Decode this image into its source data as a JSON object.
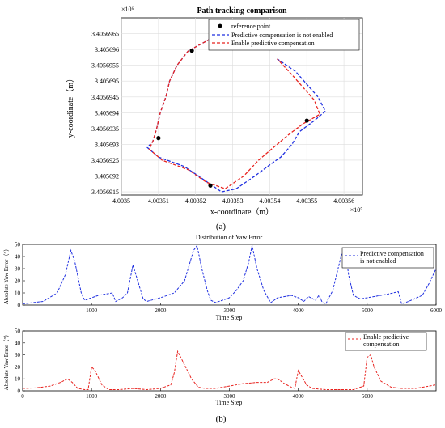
{
  "panel_labels": {
    "a": "(a)",
    "b": "(b)"
  },
  "chart_data": [
    {
      "type": "line",
      "title": "Path tracking comparison",
      "xlabel": "x-coordinate（m）",
      "ylabel": "y-coordinate（m）",
      "x_exponent_label": "×10⁵",
      "y_exponent_label": "×10⁶",
      "xlim": [
        400350.0,
        400356.5
      ],
      "ylim": [
        3405691.4,
        3405697.0
      ],
      "x_ticks": [
        400350,
        400351,
        400352,
        400353,
        400354,
        400355,
        400356
      ],
      "x_tick_labels": [
        "4.0035",
        "4.00351",
        "4.00352",
        "4.00353",
        "4.00354",
        "4.00355",
        "4.00356"
      ],
      "y_ticks": [
        3405691.5,
        3405692.0,
        3405692.5,
        3405693.0,
        3405693.5,
        3405694.0,
        3405694.5,
        3405695.0,
        3405695.5,
        3405696.0,
        3405696.5
      ],
      "y_tick_labels": [
        "3.4056915",
        "3.405692",
        "3.4056925",
        "3.405693",
        "3.4056935",
        "3.405694",
        "3.4056945",
        "3.405695",
        "3.4056955",
        "3.405696",
        "3.4056965"
      ],
      "grid": true,
      "legend_position": "top-right",
      "colors": {
        "not_enabled": "#1f2fe0",
        "enabled": "#e8231f",
        "reference": "#000000"
      },
      "series": [
        {
          "name": "Predictive compensation is not enabled",
          "style": "dashed",
          "points": [
            [
              400352.5,
              3405696.4
            ],
            [
              400351.8,
              3405695.95
            ],
            [
              400351.5,
              3405695.5
            ],
            [
              400351.3,
              3405695.0
            ],
            [
              400351.2,
              3405694.5
            ],
            [
              400351.05,
              3405694.0
            ],
            [
              400350.95,
              3405693.5
            ],
            [
              400350.85,
              3405693.1
            ],
            [
              400350.7,
              3405692.9
            ],
            [
              400351.0,
              3405692.6
            ],
            [
              400351.7,
              3405692.3
            ],
            [
              400352.2,
              3405691.9
            ],
            [
              400352.7,
              3405691.5
            ],
            [
              400353.1,
              3405691.6
            ],
            [
              400353.6,
              3405692.0
            ],
            [
              400354.0,
              3405692.35
            ],
            [
              400354.3,
              3405692.6
            ],
            [
              400354.6,
              3405693.0
            ],
            [
              400354.8,
              3405693.4
            ],
            [
              400355.2,
              3405693.75
            ],
            [
              400355.5,
              3405694.05
            ],
            [
              400355.3,
              3405694.5
            ],
            [
              400355.0,
              3405694.9
            ],
            [
              400354.7,
              3405695.3
            ],
            [
              400354.2,
              3405695.7
            ]
          ]
        },
        {
          "name": "Enable predictive compensation",
          "style": "dashed",
          "points": [
            [
              400352.5,
              3405696.4
            ],
            [
              400351.8,
              3405695.95
            ],
            [
              400351.5,
              3405695.5
            ],
            [
              400351.3,
              3405695.0
            ],
            [
              400351.2,
              3405694.5
            ],
            [
              400351.05,
              3405694.0
            ],
            [
              400350.95,
              3405693.5
            ],
            [
              400350.85,
              3405693.1
            ],
            [
              400350.75,
              3405692.85
            ],
            [
              400351.1,
              3405692.5
            ],
            [
              400351.8,
              3405692.2
            ],
            [
              400352.3,
              3405691.8
            ],
            [
              400352.8,
              3405691.6
            ],
            [
              400353.3,
              3405692.0
            ],
            [
              400353.7,
              3405692.5
            ],
            [
              400354.1,
              3405692.9
            ],
            [
              400354.5,
              3405693.3
            ],
            [
              400354.9,
              3405693.65
            ],
            [
              400355.35,
              3405693.95
            ],
            [
              400355.2,
              3405694.4
            ],
            [
              400354.9,
              3405694.8
            ],
            [
              400354.6,
              3405695.2
            ],
            [
              400354.2,
              3405695.7
            ]
          ]
        }
      ],
      "reference_points": {
        "name": "reference point",
        "points": [
          [
            400351.9,
            3405695.96
          ],
          [
            400351.0,
            3405693.2
          ],
          [
            400352.4,
            3405691.7
          ],
          [
            400355.0,
            3405693.75
          ]
        ]
      }
    },
    {
      "type": "line",
      "title": "Distribution of Yaw Error",
      "xlabel": "Time Step",
      "ylabel": "Absolute Yaw Error（°）",
      "xlim": [
        0,
        6000
      ],
      "ylim": [
        0,
        50
      ],
      "x_ticks": [
        1000,
        2000,
        3000,
        4000,
        5000,
        6000
      ],
      "y_ticks": [
        0,
        10,
        20,
        30,
        40,
        50
      ],
      "grid": false,
      "legend_position": "top-right",
      "color": "#1f2fe0",
      "series": [
        {
          "name": "Predictive compensation\nis not enabled",
          "style": "dashed",
          "points": [
            [
              0,
              1
            ],
            [
              300,
              3
            ],
            [
              500,
              10
            ],
            [
              620,
              25
            ],
            [
              700,
              45
            ],
            [
              760,
              35
            ],
            [
              850,
              10
            ],
            [
              900,
              4
            ],
            [
              1000,
              6
            ],
            [
              1100,
              8
            ],
            [
              1300,
              10
            ],
            [
              1350,
              3
            ],
            [
              1450,
              6
            ],
            [
              1520,
              10
            ],
            [
              1600,
              33
            ],
            [
              1680,
              18
            ],
            [
              1750,
              5
            ],
            [
              1800,
              3
            ],
            [
              2000,
              6
            ],
            [
              2200,
              10
            ],
            [
              2350,
              20
            ],
            [
              2480,
              45
            ],
            [
              2530,
              49
            ],
            [
              2600,
              30
            ],
            [
              2680,
              12
            ],
            [
              2730,
              4
            ],
            [
              2800,
              2
            ],
            [
              3000,
              6
            ],
            [
              3100,
              12
            ],
            [
              3200,
              20
            ],
            [
              3280,
              35
            ],
            [
              3330,
              49
            ],
            [
              3400,
              30
            ],
            [
              3500,
              12
            ],
            [
              3550,
              7
            ],
            [
              3600,
              2
            ],
            [
              3700,
              6
            ],
            [
              3900,
              8
            ],
            [
              4000,
              6
            ],
            [
              4080,
              3
            ],
            [
              4150,
              7
            ],
            [
              4250,
              4
            ],
            [
              4300,
              8
            ],
            [
              4350,
              2
            ],
            [
              4400,
              1
            ],
            [
              4500,
              12
            ],
            [
              4620,
              40
            ],
            [
              4680,
              47
            ],
            [
              4730,
              25
            ],
            [
              4800,
              8
            ],
            [
              4900,
              5
            ],
            [
              5100,
              7
            ],
            [
              5300,
              9
            ],
            [
              5450,
              11
            ],
            [
              5500,
              1
            ],
            [
              5600,
              3
            ],
            [
              5800,
              8
            ],
            [
              5900,
              18
            ],
            [
              6000,
              30
            ]
          ]
        }
      ]
    },
    {
      "type": "line",
      "xlabel": "Time Step",
      "ylabel": "Absolute Yaw Error（°）",
      "xlim": [
        0,
        6000
      ],
      "ylim": [
        0,
        50
      ],
      "x_ticks": [
        0,
        1000,
        2000,
        3000,
        4000,
        5000
      ],
      "y_ticks": [
        0,
        10,
        20,
        30,
        40,
        50
      ],
      "grid": false,
      "legend_position": "top-right",
      "color": "#e8231f",
      "series": [
        {
          "name": "Enable predictive\ncompensation",
          "style": "dashed",
          "points": [
            [
              0,
              2
            ],
            [
              200,
              2.5
            ],
            [
              400,
              4
            ],
            [
              550,
              7
            ],
            [
              650,
              10
            ],
            [
              720,
              7
            ],
            [
              800,
              2
            ],
            [
              900,
              1
            ],
            [
              950,
              1
            ],
            [
              1000,
              20
            ],
            [
              1050,
              17
            ],
            [
              1150,
              5
            ],
            [
              1250,
              1
            ],
            [
              1400,
              1
            ],
            [
              1600,
              2
            ],
            [
              1800,
              1
            ],
            [
              2000,
              2
            ],
            [
              2150,
              5
            ],
            [
              2200,
              15
            ],
            [
              2250,
              33
            ],
            [
              2320,
              25
            ],
            [
              2450,
              10
            ],
            [
              2550,
              3
            ],
            [
              2650,
              2
            ],
            [
              2800,
              2
            ],
            [
              3000,
              4
            ],
            [
              3200,
              6
            ],
            [
              3400,
              7
            ],
            [
              3550,
              7
            ],
            [
              3650,
              10
            ],
            [
              3700,
              10
            ],
            [
              3800,
              6
            ],
            [
              3900,
              3
            ],
            [
              3950,
              2
            ],
            [
              4000,
              17
            ],
            [
              4050,
              12
            ],
            [
              4120,
              5
            ],
            [
              4200,
              2
            ],
            [
              4400,
              1
            ],
            [
              4600,
              1
            ],
            [
              4800,
              1
            ],
            [
              4950,
              4
            ],
            [
              5000,
              28
            ],
            [
              5050,
              30
            ],
            [
              5100,
              20
            ],
            [
              5200,
              8
            ],
            [
              5350,
              3
            ],
            [
              5500,
              2
            ],
            [
              5700,
              2
            ],
            [
              5900,
              4
            ],
            [
              6000,
              5
            ]
          ]
        }
      ]
    }
  ]
}
